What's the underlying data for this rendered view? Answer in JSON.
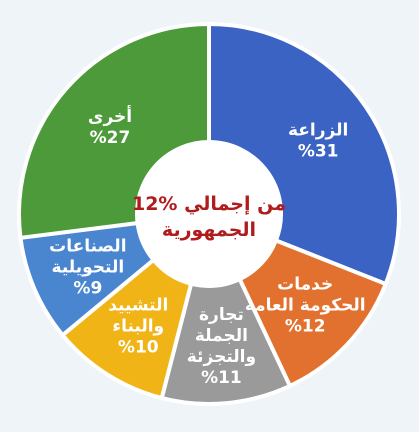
{
  "chart_data": {
    "type": "pie",
    "variant": "donut",
    "center_label": [
      "12% من إجمالي",
      "الجمهورية"
    ],
    "center_label_color": "#b01c1c",
    "slices": [
      {
        "label": [
          "الزراعة"
        ],
        "value_label": "%31",
        "value": 31,
        "color": "#3a63c4"
      },
      {
        "label": [
          "خدمات",
          "الحكومة العامة"
        ],
        "value_label": "%12",
        "value": 12,
        "color": "#e2712f"
      },
      {
        "label": [
          "تجارة",
          "الجملة",
          "والتجزئة"
        ],
        "value_label": "%11",
        "value": 11,
        "color": "#9a9a9a"
      },
      {
        "label": [
          "التشييد",
          "والبناء"
        ],
        "value_label": "%10",
        "value": 10,
        "color": "#f0b416"
      },
      {
        "label": [
          "الصناعات",
          "التحويلية"
        ],
        "value_label": "%9",
        "value": 9,
        "color": "#4a86cf"
      },
      {
        "label": [
          "أخرى"
        ],
        "value_label": "%27",
        "value": 27,
        "color": "#4d9a3b"
      }
    ]
  }
}
